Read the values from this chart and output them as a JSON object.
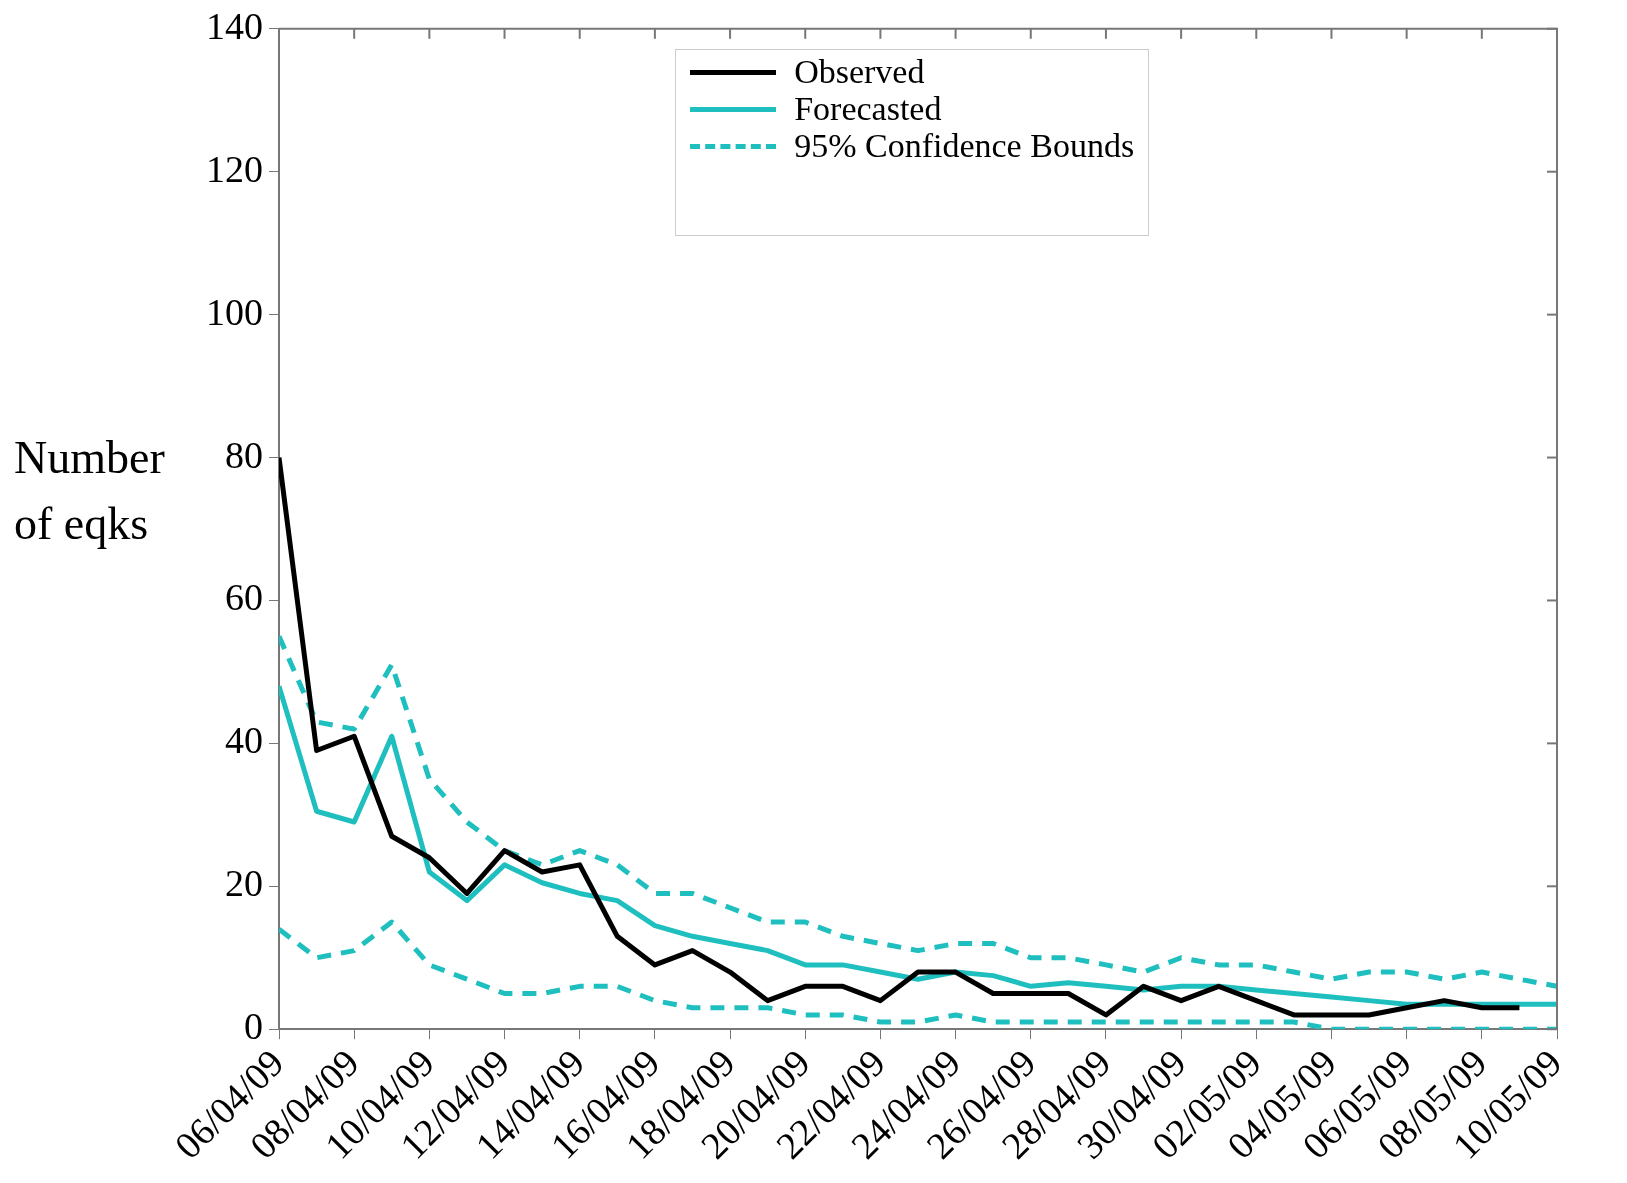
{
  "chart_data": {
    "type": "line",
    "ylabel": "Number of eqks",
    "x": [
      "--04-06",
      "--04-07",
      "--04-08",
      "--04-09",
      "--04-10",
      "--04-11",
      "--04-12",
      "--04-13",
      "--04-14",
      "--04-15",
      "--04-16",
      "--04-17",
      "--04-18",
      "--04-19",
      "--04-20",
      "--04-21",
      "--04-22",
      "--04-23",
      "--04-24",
      "--04-25",
      "--04-26",
      "--04-27",
      "--04-28",
      "--04-29",
      "--04-30",
      "--05-01",
      "--05-02",
      "--05-03",
      "--05-04",
      "--05-05",
      "--05-06",
      "--05-07",
      "--05-08",
      "--05-09",
      "--05-10"
    ],
    "series": [
      {
        "name": "Observed",
        "color": "#000000",
        "line_style": "solid",
        "values": [
          80,
          39,
          41,
          27,
          24,
          19,
          25,
          22,
          23,
          13,
          9,
          11,
          8,
          4,
          6,
          6,
          4,
          8,
          8,
          5,
          5,
          5,
          2,
          6,
          4,
          6,
          4,
          2,
          2,
          2,
          3,
          4,
          3,
          3,
          null
        ]
      },
      {
        "name": "Forecasted",
        "color": "#1fbfbf",
        "line_style": "solid",
        "values": [
          48,
          30.5,
          29,
          41,
          22,
          18,
          23,
          20.5,
          19,
          18,
          14.5,
          13,
          12,
          11,
          9,
          9,
          8,
          7,
          8,
          7.5,
          6,
          6.5,
          6,
          5.5,
          6,
          6,
          5.5,
          5,
          4.5,
          4,
          3.5,
          3.5,
          3.5,
          3.5,
          3.5
        ]
      },
      {
        "name": "95% Confidence Bounds",
        "color": "#1fbfbf",
        "line_style": "dashed",
        "values": [
          55,
          43,
          42,
          51,
          35,
          29,
          25,
          23,
          25,
          23,
          19,
          19,
          17,
          15,
          15,
          13,
          12,
          11,
          12,
          12,
          10,
          10,
          9,
          8,
          10,
          9,
          9,
          8,
          7,
          8,
          8,
          7,
          8,
          7,
          6
        ]
      },
      {
        "color": "#1fbfbf",
        "line_style": "dashed",
        "values": [
          14,
          10,
          11,
          15,
          9,
          7,
          5,
          5,
          6,
          6,
          4,
          3,
          3,
          3,
          2,
          2,
          1,
          1,
          2,
          1,
          1,
          1,
          1,
          1,
          1,
          1,
          1,
          1,
          0,
          0,
          0,
          0,
          0,
          0,
          0
        ]
      }
    ],
    "xlim": [
      "--04-06",
      "--05-10"
    ],
    "xticks": [
      {
        "value": "--04-06",
        "label": "06/04/09"
      },
      {
        "value": "--04-08",
        "label": "08/04/09"
      },
      {
        "value": "--04-10",
        "label": "10/04/09"
      },
      {
        "value": "--04-12",
        "label": "12/04/09"
      },
      {
        "value": "--04-14",
        "label": "14/04/09"
      },
      {
        "value": "--04-16",
        "label": "16/04/09"
      },
      {
        "value": "--04-18",
        "label": "18/04/09"
      },
      {
        "value": "--04-20",
        "label": "20/04/09"
      },
      {
        "value": "--04-22",
        "label": "22/04/09"
      },
      {
        "value": "--04-24",
        "label": "24/04/09"
      },
      {
        "value": "--04-26",
        "label": "26/04/09"
      },
      {
        "value": "--04-28",
        "label": "28/04/09"
      },
      {
        "value": "--04-30",
        "label": "30/04/09"
      },
      {
        "value": "--05-02",
        "label": "02/05/09"
      },
      {
        "value": "--05-04",
        "label": "04/05/09"
      },
      {
        "value": "--05-06",
        "label": "06/05/09"
      },
      {
        "value": "--05-08",
        "label": "08/05/09"
      },
      {
        "value": "--05-10",
        "label": "10/05/09"
      }
    ],
    "ylim": [
      0,
      140
    ],
    "yticks": [
      0,
      20,
      40,
      60,
      80,
      100,
      120,
      140
    ],
    "grid": false,
    "legend": "top"
  }
}
